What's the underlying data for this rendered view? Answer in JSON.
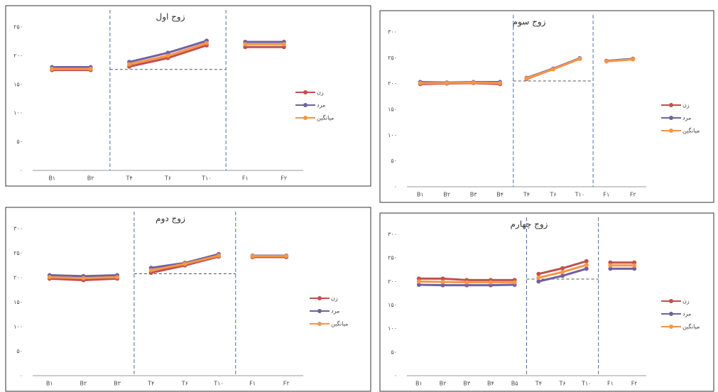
{
  "chart_data": [
    {
      "type": "line",
      "title": "زوج اول",
      "categories": [
        "B۱",
        "B۲",
        "T۴",
        "T۶",
        "T۱۰",
        "F۱",
        "F۲"
      ],
      "series": [
        {
          "name": "زن",
          "color": "#c0504d",
          "values": [
            175,
            175,
            181,
            196,
            218,
            215,
            215
          ]
        },
        {
          "name": "مرد",
          "color": "#7160a3",
          "values": [
            180,
            180,
            189,
            205,
            226,
            224,
            224
          ]
        },
        {
          "name": "میانگین",
          "color": "#f79646",
          "values": [
            177,
            177,
            185,
            200,
            222,
            220,
            220
          ]
        }
      ],
      "reference_line": 176,
      "ylim": [
        0,
        250
      ],
      "yticks": [
        {
          "value": 0,
          "label": "۰"
        },
        {
          "value": 50,
          "label": "۵۰"
        },
        {
          "value": 100,
          "label": "۱۰۰"
        },
        {
          "value": 150,
          "label": "۱۵۰"
        },
        {
          "value": 200,
          "label": "۲۰۰"
        },
        {
          "value": 250,
          "label": "۲۵۰"
        }
      ]
    },
    {
      "type": "line",
      "title": "زوج سوم",
      "categories": [
        "B۱",
        "B۲",
        "B۳",
        "B۴",
        "T۴",
        "T۶",
        "T۱۰",
        "F۱",
        "F۲"
      ],
      "series": [
        {
          "name": "زن",
          "color": "#c0504d",
          "values": [
            199,
            200,
            201,
            199,
            209,
            228,
            248,
            243,
            247
          ]
        },
        {
          "name": "مرد",
          "color": "#7160a3",
          "values": [
            203,
            202,
            203,
            203,
            211,
            229,
            249,
            244,
            248
          ]
        },
        {
          "name": "میانگین",
          "color": "#f79646",
          "values": [
            201,
            201,
            202,
            201,
            210,
            228,
            248,
            243,
            247
          ]
        }
      ],
      "reference_line": 205,
      "ylim": [
        0,
        300
      ],
      "yticks": [
        {
          "value": 0,
          "label": "۰"
        },
        {
          "value": 50,
          "label": "۵۰"
        },
        {
          "value": 100,
          "label": "۱۰۰"
        },
        {
          "value": 150,
          "label": "۱۵۰"
        },
        {
          "value": 200,
          "label": "۲۰۰"
        },
        {
          "value": 250,
          "label": "۲۵۰"
        },
        {
          "value": 300,
          "label": "۳۰۰"
        }
      ]
    },
    {
      "type": "line",
      "title": "زوج دوم",
      "categories": [
        "B۱",
        "B۲",
        "B۳",
        "T۴",
        "T۶",
        "T۱۰",
        "F۱",
        "F۲"
      ],
      "series": [
        {
          "name": "زن",
          "color": "#c0504d",
          "values": [
            198,
            195,
            198,
            210,
            225,
            243,
            242,
            242
          ]
        },
        {
          "name": "مرد",
          "color": "#7160a3",
          "values": [
            205,
            203,
            205,
            220,
            230,
            248,
            245,
            245
          ]
        },
        {
          "name": "میانگین",
          "color": "#f79646",
          "values": [
            201,
            199,
            201,
            215,
            228,
            245,
            244,
            244
          ]
        }
      ],
      "reference_line": 208,
      "ylim": [
        0,
        300
      ],
      "yticks": [
        {
          "value": 0,
          "label": "۰"
        },
        {
          "value": 50,
          "label": "۵۰"
        },
        {
          "value": 100,
          "label": "۱۰۰"
        },
        {
          "value": 150,
          "label": "۱۵۰"
        },
        {
          "value": 200,
          "label": "۲۰۰"
        },
        {
          "value": 250,
          "label": "۲۵۰"
        },
        {
          "value": 300,
          "label": "۳۰۰"
        }
      ]
    },
    {
      "type": "line",
      "title": "زوج چهارم",
      "categories": [
        "B۱",
        "B۲",
        "B۳",
        "B۴",
        "B۵",
        "T۴",
        "T۶",
        "T۱۰",
        "F۱",
        "F۲"
      ],
      "series": [
        {
          "name": "زن",
          "color": "#c0504d",
          "values": [
            206,
            206,
            203,
            203,
            203,
            216,
            228,
            243,
            240,
            240
          ]
        },
        {
          "name": "مرد",
          "color": "#7160a3",
          "values": [
            193,
            192,
            192,
            192,
            193,
            200,
            212,
            227,
            227,
            227
          ]
        },
        {
          "name": "میانگین",
          "color": "#f79646",
          "values": [
            200,
            199,
            198,
            198,
            198,
            208,
            220,
            235,
            234,
            234
          ]
        }
      ],
      "reference_line": 205,
      "ylim": [
        0,
        300
      ],
      "yticks": [
        {
          "value": 0,
          "label": "۰"
        },
        {
          "value": 50,
          "label": "۵۰"
        },
        {
          "value": 100,
          "label": "۱۰۰"
        },
        {
          "value": 150,
          "label": "۱۵۰"
        },
        {
          "value": 200,
          "label": "۲۰۰"
        },
        {
          "value": 250,
          "label": "۲۵۰"
        },
        {
          "value": 300,
          "label": "۳۰۰"
        }
      ]
    }
  ]
}
